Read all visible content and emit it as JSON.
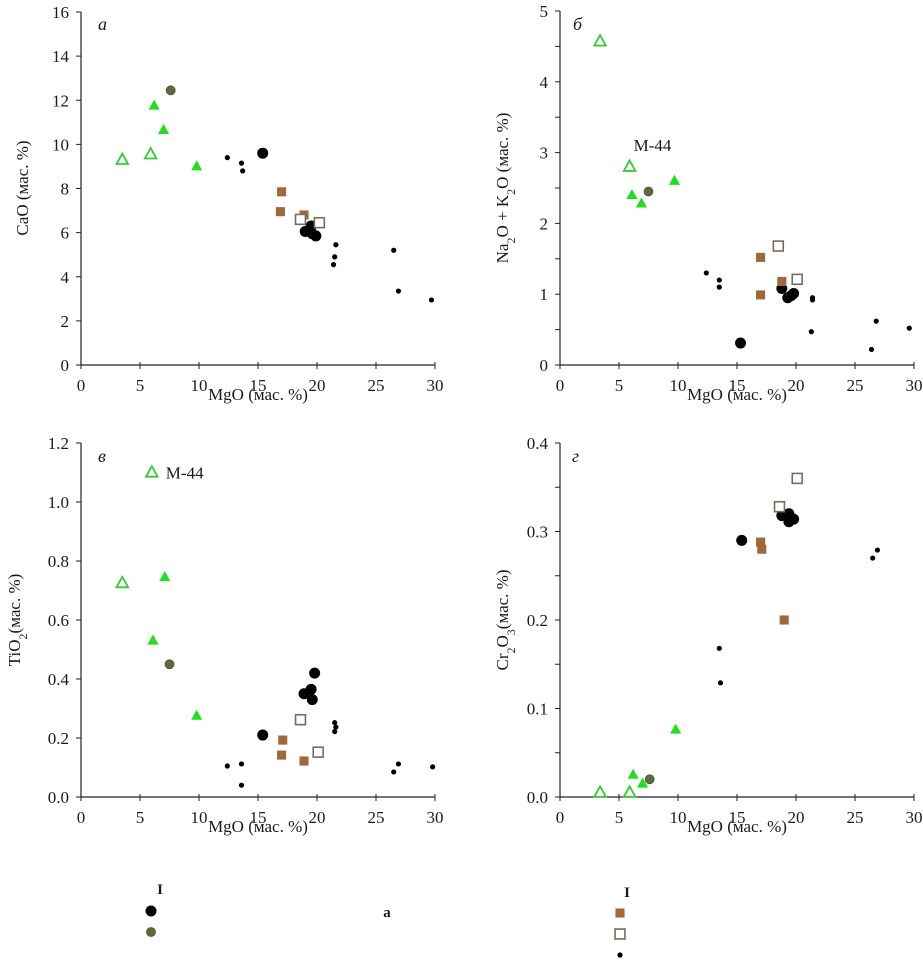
{
  "styles": {
    "black_dot_big": {
      "shape": "circle",
      "fill": "#000000",
      "stroke": "none",
      "size": "large"
    },
    "olive_dot": {
      "shape": "circle",
      "fill": "#5e6b3a",
      "stroke": "#4a5530",
      "size": "medium"
    },
    "small_dot": {
      "shape": "circle",
      "fill": "#000000",
      "stroke": "none",
      "size": "small"
    },
    "green_tri_filled": {
      "shape": "triangle",
      "fill": "#22dd22",
      "stroke": "#22dd22",
      "size": "medium"
    },
    "green_tri_open": {
      "shape": "triangle",
      "fill": "#ffffff",
      "stroke": "#33cc33",
      "size": "large"
    },
    "brown_sq_filled": {
      "shape": "square",
      "fill": "#a0693a",
      "stroke": "#a0693a",
      "size": "medium"
    },
    "brown_sq_open": {
      "shape": "square",
      "fill": "#ffffff",
      "stroke": "#7a6a5a",
      "size": "large"
    }
  },
  "chart_data": [
    {
      "type": "scatter",
      "panel": "а",
      "title": "",
      "xlabel": "MgO (мас. %)",
      "ylabel": "CaO (мас. %)",
      "xlim": [
        0,
        30
      ],
      "ylim": [
        0,
        16
      ],
      "xticks": [
        0,
        5,
        10,
        15,
        20,
        25,
        30
      ],
      "yticks": [
        0,
        2,
        4,
        6,
        8,
        10,
        12,
        14,
        16
      ],
      "ytick_labels": [
        "0",
        "2",
        "4",
        "6",
        "8",
        "10",
        "12",
        "14",
        "16"
      ],
      "annotations": [],
      "series": [
        {
          "name": "green_tri_open",
          "points": [
            [
              3.5,
              9.3
            ],
            [
              5.9,
              9.55
            ]
          ]
        },
        {
          "name": "green_tri_filled",
          "points": [
            [
              6.2,
              11.75
            ],
            [
              7.0,
              10.65
            ],
            [
              9.8,
              9.0
            ]
          ]
        },
        {
          "name": "olive_dot",
          "points": [
            [
              7.6,
              12.45
            ]
          ]
        },
        {
          "name": "black_dot_big",
          "points": [
            [
              15.4,
              9.6
            ],
            [
              19.0,
              6.05
            ],
            [
              19.5,
              6.3
            ],
            [
              19.6,
              5.95
            ],
            [
              19.9,
              5.85
            ]
          ]
        },
        {
          "name": "small_dot",
          "points": [
            [
              12.4,
              9.4
            ],
            [
              13.6,
              9.15
            ],
            [
              13.7,
              8.8
            ],
            [
              21.6,
              5.45
            ],
            [
              21.5,
              4.9
            ],
            [
              21.4,
              4.55
            ],
            [
              26.5,
              5.2
            ],
            [
              26.9,
              3.35
            ],
            [
              29.7,
              2.95
            ]
          ]
        },
        {
          "name": "brown_sq_filled",
          "points": [
            [
              17.0,
              7.85
            ],
            [
              16.9,
              6.95
            ],
            [
              18.9,
              6.8
            ]
          ]
        },
        {
          "name": "brown_sq_open",
          "points": [
            [
              18.6,
              6.6
            ],
            [
              20.2,
              6.45
            ]
          ]
        }
      ]
    },
    {
      "type": "scatter",
      "panel": "б",
      "title": "",
      "xlabel": "MgO (мас. %)",
      "ylabel": "Na2O + K2O (мас. %)",
      "xlim": [
        0,
        30
      ],
      "ylim": [
        0,
        5
      ],
      "xticks": [
        0,
        5,
        10,
        15,
        20,
        25,
        30
      ],
      "yticks": [
        0,
        1,
        2,
        3,
        4,
        5
      ],
      "ytick_labels": [
        "0",
        "1",
        "2",
        "3",
        "4",
        "5"
      ],
      "minor_yticks": [
        0.5,
        1.5,
        2.5,
        3.5,
        4.5
      ],
      "annotations": [
        {
          "text": "M-44",
          "x": 5.9,
          "y": 2.8
        }
      ],
      "series": [
        {
          "name": "green_tri_open",
          "points": [
            [
              3.4,
              4.57
            ],
            [
              5.9,
              2.8
            ]
          ]
        },
        {
          "name": "green_tri_filled",
          "points": [
            [
              6.1,
              2.4
            ],
            [
              6.9,
              2.28
            ],
            [
              9.7,
              2.6
            ]
          ]
        },
        {
          "name": "olive_dot",
          "points": [
            [
              7.5,
              2.45
            ]
          ]
        },
        {
          "name": "black_dot_big",
          "points": [
            [
              15.3,
              0.31
            ],
            [
              18.8,
              1.08
            ],
            [
              19.3,
              0.95
            ],
            [
              19.6,
              0.98
            ],
            [
              19.8,
              1.01
            ]
          ]
        },
        {
          "name": "small_dot",
          "points": [
            [
              12.4,
              1.3
            ],
            [
              13.5,
              1.2
            ],
            [
              13.5,
              1.1
            ],
            [
              21.4,
              0.95
            ],
            [
              21.4,
              0.92
            ],
            [
              21.3,
              0.47
            ],
            [
              26.8,
              0.62
            ],
            [
              26.4,
              0.22
            ],
            [
              29.6,
              0.52
            ]
          ]
        },
        {
          "name": "brown_sq_filled",
          "points": [
            [
              17.0,
              1.52
            ],
            [
              17.0,
              0.99
            ],
            [
              18.8,
              1.18
            ]
          ]
        },
        {
          "name": "brown_sq_open",
          "points": [
            [
              18.5,
              1.68
            ],
            [
              20.1,
              1.21
            ]
          ]
        }
      ]
    },
    {
      "type": "scatter",
      "panel": "в",
      "title": "",
      "xlabel": "MgO (мас. %)",
      "ylabel": "TiO2(мас. %)",
      "xlim": [
        0,
        30
      ],
      "ylim": [
        0,
        1.2
      ],
      "xticks": [
        0,
        5,
        10,
        15,
        20,
        25,
        30
      ],
      "yticks": [
        0,
        0.2,
        0.4,
        0.6,
        0.8,
        1.0,
        1.2
      ],
      "ytick_labels": [
        "0.0",
        "0.2",
        "0.4",
        "0.6",
        "0.8",
        "1.0",
        "1.2"
      ],
      "annotations": [
        {
          "text": "M-44",
          "x": 6.0,
          "y": 1.1
        }
      ],
      "series": [
        {
          "name": "green_tri_open",
          "points": [
            [
              3.5,
              0.725
            ],
            [
              6.0,
              1.1
            ]
          ]
        },
        {
          "name": "green_tri_filled",
          "points": [
            [
              7.1,
              0.745
            ],
            [
              6.1,
              0.53
            ],
            [
              9.8,
              0.275
            ]
          ]
        },
        {
          "name": "olive_dot",
          "points": [
            [
              7.5,
              0.45
            ]
          ]
        },
        {
          "name": "black_dot_big",
          "points": [
            [
              15.4,
              0.21
            ],
            [
              18.9,
              0.35
            ],
            [
              19.5,
              0.365
            ],
            [
              19.6,
              0.33
            ],
            [
              19.8,
              0.42
            ]
          ]
        },
        {
          "name": "small_dot",
          "points": [
            [
              12.4,
              0.105
            ],
            [
              13.6,
              0.112
            ],
            [
              13.6,
              0.04
            ],
            [
              21.5,
              0.252
            ],
            [
              21.6,
              0.237
            ],
            [
              21.5,
              0.222
            ],
            [
              26.5,
              0.085
            ],
            [
              26.9,
              0.112
            ],
            [
              29.8,
              0.102
            ]
          ]
        },
        {
          "name": "brown_sq_filled",
          "points": [
            [
              17.1,
              0.193
            ],
            [
              17.0,
              0.142
            ],
            [
              18.9,
              0.122
            ]
          ]
        },
        {
          "name": "brown_sq_open",
          "points": [
            [
              18.6,
              0.262
            ],
            [
              20.1,
              0.152
            ]
          ]
        }
      ]
    },
    {
      "type": "scatter",
      "panel": "г",
      "title": "",
      "xlabel": "MgO (мас. %)",
      "ylabel": "Cr2O3(мас. %)",
      "xlim": [
        0,
        30
      ],
      "ylim": [
        0,
        0.4
      ],
      "xticks": [
        0,
        5,
        10,
        15,
        20,
        25,
        30
      ],
      "yticks": [
        0,
        0.1,
        0.2,
        0.3,
        0.4
      ],
      "ytick_labels": [
        "0.0",
        "0.1",
        "0.2",
        "0.3",
        "0.4"
      ],
      "minor_yticks": [
        0.05,
        0.15,
        0.25,
        0.35
      ],
      "annotations": [],
      "series": [
        {
          "name": "green_tri_open",
          "points": [
            [
              3.4,
              0.005
            ],
            [
              5.9,
              0.005
            ]
          ]
        },
        {
          "name": "green_tri_filled",
          "points": [
            [
              6.2,
              0.025
            ],
            [
              7.0,
              0.015
            ],
            [
              9.8,
              0.076
            ]
          ]
        },
        {
          "name": "olive_dot",
          "points": [
            [
              7.6,
              0.02
            ]
          ]
        },
        {
          "name": "black_dot_big",
          "points": [
            [
              15.4,
              0.29
            ],
            [
              18.8,
              0.318
            ],
            [
              19.4,
              0.32
            ],
            [
              19.4,
              0.311
            ],
            [
              19.8,
              0.314
            ]
          ]
        },
        {
          "name": "small_dot",
          "points": [
            [
              13.5,
              0.168
            ],
            [
              13.6,
              0.129
            ],
            [
              26.5,
              0.27
            ],
            [
              26.9,
              0.279
            ]
          ]
        },
        {
          "name": "brown_sq_filled",
          "points": [
            [
              17.0,
              0.288
            ],
            [
              17.1,
              0.28
            ],
            [
              19.0,
              0.2
            ]
          ]
        },
        {
          "name": "brown_sq_open",
          "points": [
            [
              18.6,
              0.328
            ],
            [
              20.1,
              0.36
            ]
          ]
        }
      ]
    }
  ],
  "legend": {
    "col1_heading": "I",
    "col2_heading": "a",
    "col3_heading": "I",
    "col1_items": [
      "black_dot_big",
      "olive_dot"
    ],
    "col3_items": [
      "brown_sq_filled",
      "brown_sq_open",
      "small_dot"
    ]
  }
}
